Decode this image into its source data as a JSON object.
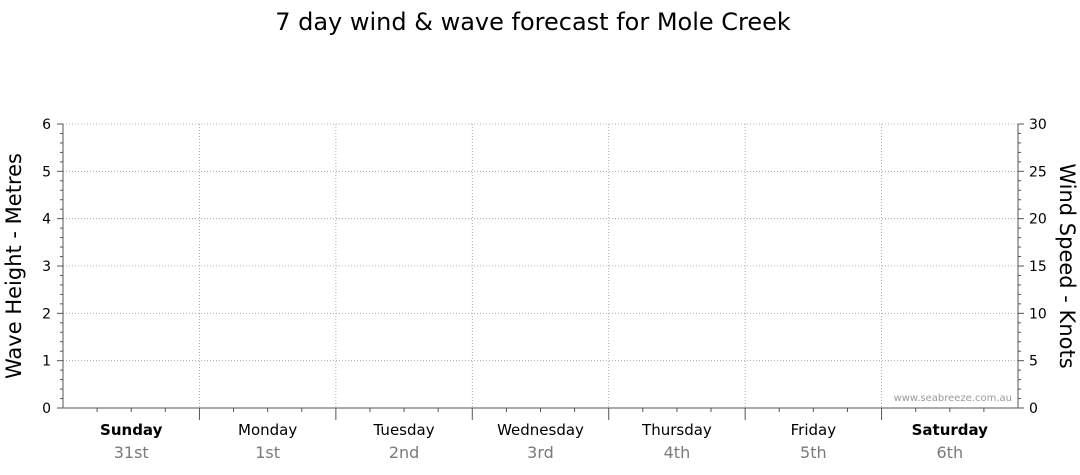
{
  "chart_data": {
    "type": "line",
    "title": "7 day wind & wave forecast for Mole Creek",
    "ylabel_left": "Wave Height - Metres",
    "ylabel_right": "Wind Speed - Knots",
    "ylim_left": [
      0,
      6
    ],
    "ylim_right": [
      0,
      30
    ],
    "yticks_left": [
      0,
      1,
      2,
      3,
      4,
      5,
      6
    ],
    "yticks_right": [
      0,
      5,
      10,
      15,
      20,
      25,
      30
    ],
    "grid": true,
    "categories": [
      {
        "day": "Sunday",
        "date": "31st",
        "bold": true
      },
      {
        "day": "Monday",
        "date": "1st",
        "bold": false
      },
      {
        "day": "Tuesday",
        "date": "2nd",
        "bold": false
      },
      {
        "day": "Wednesday",
        "date": "3rd",
        "bold": false
      },
      {
        "day": "Thursday",
        "date": "4th",
        "bold": false
      },
      {
        "day": "Friday",
        "date": "5th",
        "bold": false
      },
      {
        "day": "Saturday",
        "date": "6th",
        "bold": true
      }
    ],
    "series": [],
    "watermark": "www.seabreeze.com.au"
  }
}
